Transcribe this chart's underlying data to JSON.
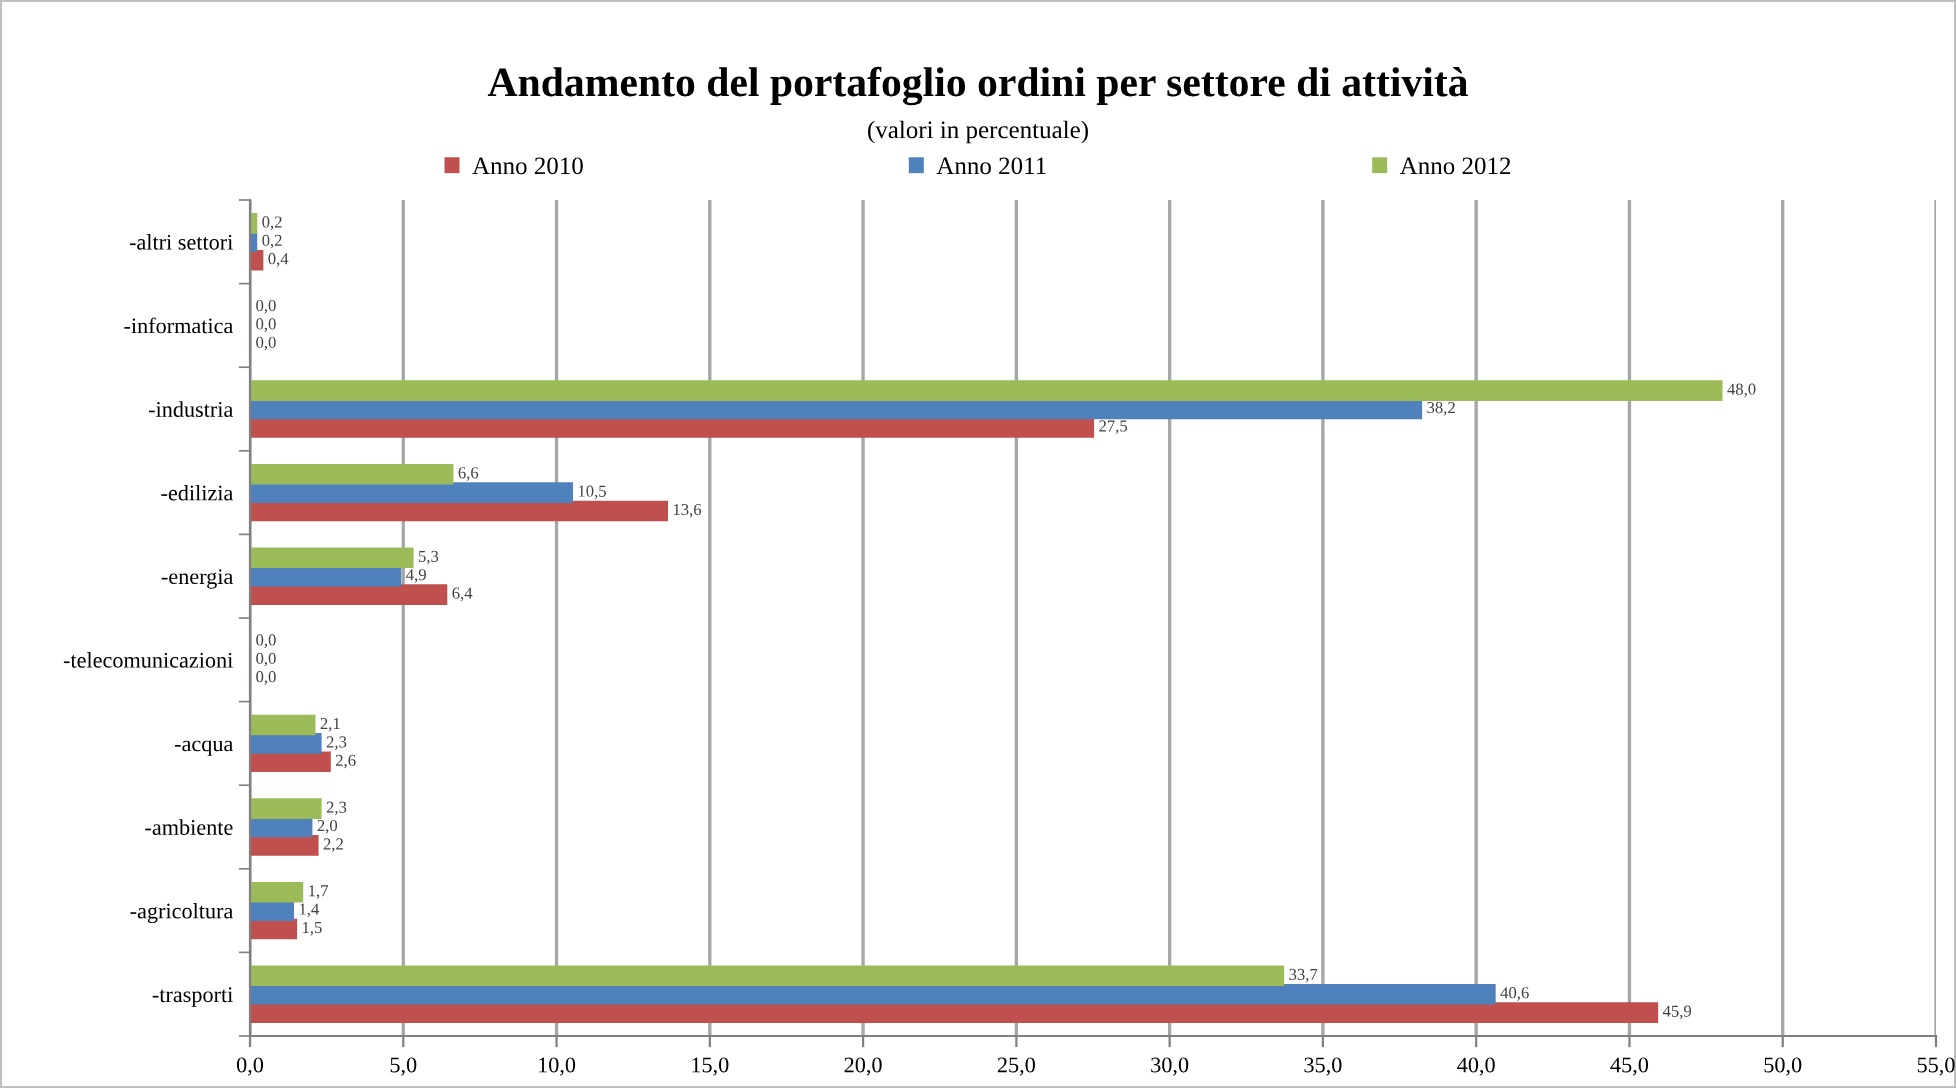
{
  "chart_data": {
    "type": "bar",
    "orientation": "horizontal",
    "title": "Andamento del portafoglio ordini per settore di attività",
    "subtitle": "(valori in percentuale)",
    "categories": [
      "-altri settori",
      "-informatica",
      "-industria",
      "-edilizia",
      "-energia",
      "-telecomunicazioni",
      "-acqua",
      "-ambiente",
      "-agricoltura",
      "-trasporti"
    ],
    "series": [
      {
        "name": "Anno 2010",
        "color": "#c0504d",
        "values": [
          0.4,
          0.0,
          27.5,
          13.6,
          6.4,
          0.0,
          2.6,
          2.2,
          1.5,
          45.9
        ],
        "value_labels": [
          "0,4",
          "0,0",
          "27,5",
          "13,6",
          "6,4",
          "0,0",
          "2,6",
          "2,2",
          "1,5",
          "45,9"
        ]
      },
      {
        "name": "Anno 2011",
        "color": "#4f81bd",
        "values": [
          0.2,
          0.0,
          38.2,
          10.5,
          4.9,
          0.0,
          2.3,
          2.0,
          1.4,
          40.6
        ],
        "value_labels": [
          "0,2",
          "0,0",
          "38,2",
          "10,5",
          "4,9",
          "0,0",
          "2,3",
          "2,0",
          "1,4",
          "40,6"
        ]
      },
      {
        "name": "Anno 2012",
        "color": "#9bbb59",
        "values": [
          0.2,
          0.0,
          48.0,
          6.6,
          5.3,
          0.0,
          2.1,
          2.3,
          1.7,
          33.7
        ],
        "value_labels": [
          "0,2",
          "0,0",
          "48,0",
          "6,6",
          "5,3",
          "0,0",
          "2,1",
          "2,3",
          "1,7",
          "33,7"
        ]
      }
    ],
    "xlim": [
      0,
      55
    ],
    "xticks": [
      {
        "value": 0,
        "label": "0,0"
      },
      {
        "value": 5,
        "label": "5,0"
      },
      {
        "value": 10,
        "label": "10,0"
      },
      {
        "value": 15,
        "label": "15,0"
      },
      {
        "value": 20,
        "label": "20,0"
      },
      {
        "value": 25,
        "label": "25,0"
      },
      {
        "value": 30,
        "label": "30,0"
      },
      {
        "value": 35,
        "label": "35,0"
      },
      {
        "value": 40,
        "label": "40,0"
      },
      {
        "value": 45,
        "label": "45,0"
      },
      {
        "value": 50,
        "label": "50,0"
      },
      {
        "value": 55,
        "label": "55,0"
      }
    ],
    "grid": "x",
    "legend": "top"
  }
}
